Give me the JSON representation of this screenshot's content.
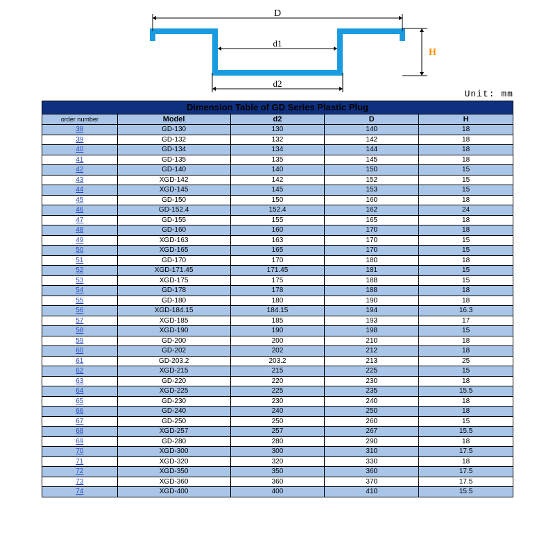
{
  "diagram": {
    "shape_color": "#1a9be0",
    "dim_color": "#000000",
    "h_color": "#ff8c00",
    "D_label": "D",
    "d1_label": "d1",
    "d2_label": "d2",
    "H_label": "H",
    "stroke_width": 8
  },
  "unit_label": "Unit: mm",
  "title": "Dimension Table of GD Series Plastic Plug",
  "columns": [
    "order number",
    "Model",
    "d2",
    "D",
    "H"
  ],
  "rows": [
    [
      "38",
      "GD-130",
      "130",
      "140",
      "18"
    ],
    [
      "39",
      "GD-132",
      "132",
      "142",
      "18"
    ],
    [
      "40",
      "GD-134",
      "134",
      "144",
      "18"
    ],
    [
      "41",
      "GD-135",
      "135",
      "145",
      "18"
    ],
    [
      "42",
      "GD-140",
      "140",
      "150",
      "15"
    ],
    [
      "43",
      "XGD-142",
      "142",
      "152",
      "15"
    ],
    [
      "44",
      "XGD-145",
      "145",
      "153",
      "15"
    ],
    [
      "45",
      "GD-150",
      "150",
      "160",
      "18"
    ],
    [
      "46",
      "GD-152.4",
      "152.4",
      "162",
      "24"
    ],
    [
      "47",
      "GD-155",
      "155",
      "165",
      "18"
    ],
    [
      "48",
      "GD-160",
      "160",
      "170",
      "18"
    ],
    [
      "49",
      "XGD-163",
      "163",
      "170",
      "15"
    ],
    [
      "50",
      "XGD-165",
      "165",
      "170",
      "15"
    ],
    [
      "51",
      "GD-170",
      "170",
      "180",
      "18"
    ],
    [
      "52",
      "XGD-171.45",
      "171.45",
      "181",
      "15"
    ],
    [
      "53",
      "XGD-175",
      "175",
      "188",
      "15"
    ],
    [
      "54",
      "GD-178",
      "178",
      "188",
      "18"
    ],
    [
      "55",
      "GD-180",
      "180",
      "190",
      "18"
    ],
    [
      "56",
      "XGD-184.15",
      "184.15",
      "194",
      "16.3"
    ],
    [
      "57",
      "XGD-185",
      "185",
      "193",
      "17"
    ],
    [
      "58",
      "XGD-190",
      "190",
      "198",
      "15"
    ],
    [
      "59",
      "GD-200",
      "200",
      "210",
      "18"
    ],
    [
      "60",
      "GD-202",
      "202",
      "212",
      "18"
    ],
    [
      "61",
      "GD-203.2",
      "203.2",
      "213",
      "25"
    ],
    [
      "62",
      "XGD-215",
      "215",
      "225",
      "15"
    ],
    [
      "63",
      "GD-220",
      "220",
      "230",
      "18"
    ],
    [
      "64",
      "XGD-225",
      "225",
      "235",
      "15.5"
    ],
    [
      "65",
      "GD-230",
      "230",
      "240",
      "18"
    ],
    [
      "66",
      "GD-240",
      "240",
      "250",
      "18"
    ],
    [
      "67",
      "GD-250",
      "250",
      "260",
      "15"
    ],
    [
      "68",
      "XGD-257",
      "257",
      "267",
      "15.5"
    ],
    [
      "69",
      "GD-280",
      "280",
      "290",
      "18"
    ],
    [
      "70",
      "XGD-300",
      "300",
      "310",
      "17.5"
    ],
    [
      "71",
      "XGD-320",
      "320",
      "330",
      "18"
    ],
    [
      "72",
      "XGD-350",
      "350",
      "360",
      "17.5"
    ],
    [
      "73",
      "XGD-360",
      "360",
      "370",
      "17.5"
    ],
    [
      "74",
      "XGD-400",
      "400",
      "410",
      "15.5"
    ]
  ],
  "colors": {
    "title_bg": "#0f2f7f",
    "header_bg": "#a9c5e8",
    "row_even_bg": "#a9c5e8",
    "row_odd_bg": "#ffffff",
    "border": "#000000",
    "link": "#2a4dbf"
  }
}
